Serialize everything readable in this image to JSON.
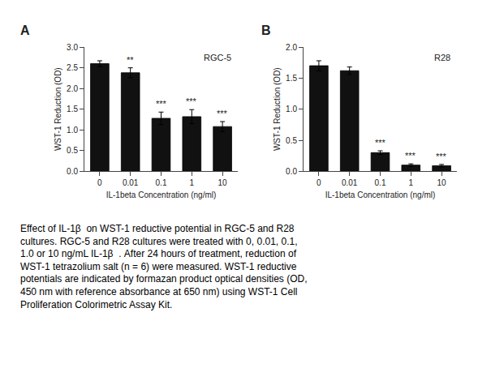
{
  "chart_data": [
    {
      "type": "bar",
      "label": "A",
      "title": "RGC-5",
      "categories": [
        "0",
        "0.01",
        "0.1",
        "1",
        "10"
      ],
      "values": [
        2.6,
        2.38,
        1.28,
        1.32,
        1.08
      ],
      "errors": [
        0.07,
        0.12,
        0.15,
        0.17,
        0.12
      ],
      "significance": [
        null,
        "**",
        "***",
        "***",
        "***"
      ],
      "xlabel": "IL-1beta Concentration (ng/ml)",
      "ylabel": "WST-1 Reduction (OD)",
      "ylim": [
        0,
        3.0
      ],
      "yticks": [
        {
          "value": 0,
          "label": "0.0"
        },
        0.5,
        {
          "value": 1,
          "label": "1.0"
        },
        1.5,
        {
          "value": 2,
          "label": "2.0"
        },
        2.5,
        {
          "value": 3,
          "label": "3.0"
        }
      ],
      "color": "#111111",
      "grid": false
    },
    {
      "type": "bar",
      "label": "B",
      "title": "R28",
      "categories": [
        "0",
        "0.01",
        "0.1",
        "1",
        "10"
      ],
      "values": [
        1.7,
        1.62,
        0.3,
        0.1,
        0.09
      ],
      "errors": [
        0.08,
        0.06,
        0.03,
        0.02,
        0.02
      ],
      "significance": [
        null,
        null,
        "***",
        "***",
        "***"
      ],
      "xlabel": "IL-1beta Concentration (ng/ml)",
      "ylabel": "WST-1 Reduction (OD)",
      "ylim": [
        0,
        2.0
      ],
      "yticks": [
        {
          "value": 0,
          "label": "0.0"
        },
        0.5,
        {
          "value": 1,
          "label": "1.0"
        },
        1.5,
        {
          "value": 2,
          "label": "2.0"
        }
      ],
      "color": "#111111",
      "grid": false
    }
  ],
  "caption": [
    "Effect of IL-1β  on WST-1 reductive potential in RGC-5 and R28",
    "cultures. RGC-5 and R28 cultures were treated with 0, 0.01, 0.1,",
    "1.0 or 10 ng/mL IL-1β  . After 24 hours of treatment, reduction of",
    "WST-1 tetrazolium salt (n = 6) were measured. WST-1 reductive",
    "potentials are indicated by formazan product optical densities (OD,",
    "450 nm with reference absorbance at 650 nm) using WST-1 Cell",
    "Proliferation Colorimetric Assay Kit."
  ]
}
